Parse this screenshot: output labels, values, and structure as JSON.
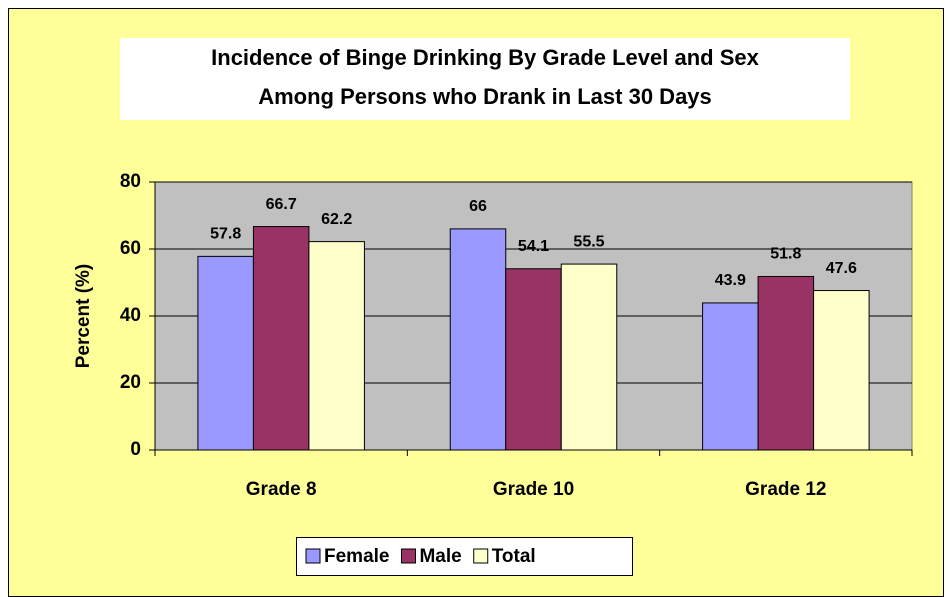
{
  "chart_data": {
    "type": "bar",
    "title": [
      "Incidence of Binge Drinking By Grade Level and Sex",
      "Among Persons who Drank in Last 30 Days"
    ],
    "ylabel": "Percent (%)",
    "categories": [
      "Grade 8",
      "Grade 10",
      "Grade 12"
    ],
    "series": [
      {
        "name": "Female",
        "color": "#9999ff",
        "values": [
          57.8,
          66,
          43.9
        ]
      },
      {
        "name": "Male",
        "color": "#993366",
        "values": [
          66.7,
          54.1,
          51.8
        ]
      },
      {
        "name": "Total",
        "color": "#ffffcc",
        "values": [
          62.2,
          55.5,
          47.6
        ]
      }
    ],
    "ylim": [
      0,
      80
    ],
    "yticks": [
      0,
      20,
      40,
      60,
      80
    ],
    "grid": true,
    "legend": "bottom"
  }
}
